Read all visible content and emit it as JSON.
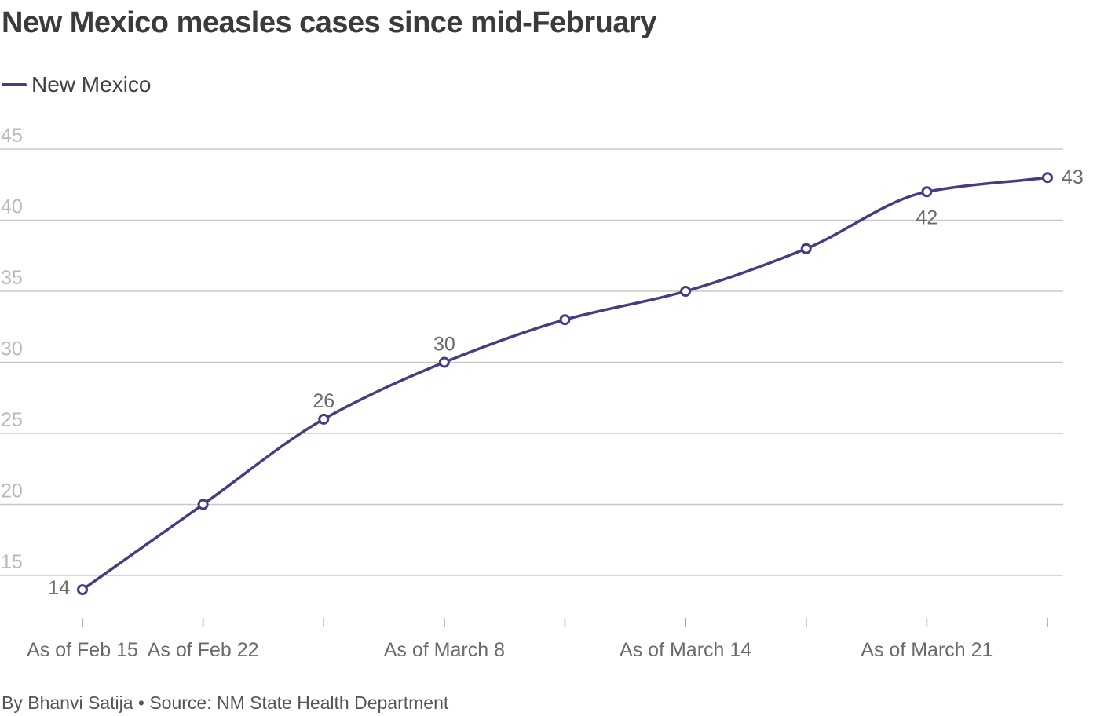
{
  "title": "New Mexico measles cases since mid-February",
  "footer": "By Bhanvi Satija • Source: NM State Health Department",
  "colors": {
    "series": "#4b3a82",
    "grid": "#c8c8c8",
    "tick_label_y": "#b8b8b8",
    "tick_label_x": "#6a6a6a"
  },
  "chart_data": {
    "type": "line",
    "title": "New Mexico measles cases since mid-February",
    "xlabel": "",
    "ylabel": "",
    "x": [
      "As of Feb 15",
      "As of Feb 22",
      "",
      "As of March 8",
      "",
      "As of March 14",
      "",
      "As of March 21",
      ""
    ],
    "series": [
      {
        "name": "New Mexico",
        "values": [
          14,
          20,
          26,
          30,
          33,
          35,
          38,
          42,
          43
        ]
      }
    ],
    "y_ticks": [
      15,
      20,
      25,
      30,
      35,
      40,
      45
    ],
    "ylim": [
      15,
      45
    ],
    "grid": true,
    "legend": "top-left",
    "data_labels": [
      {
        "index": 0,
        "text": "14"
      },
      {
        "index": 2,
        "text": "26"
      },
      {
        "index": 3,
        "text": "30"
      },
      {
        "index": 7,
        "text": "42"
      },
      {
        "index": 8,
        "text": "43"
      }
    ]
  }
}
